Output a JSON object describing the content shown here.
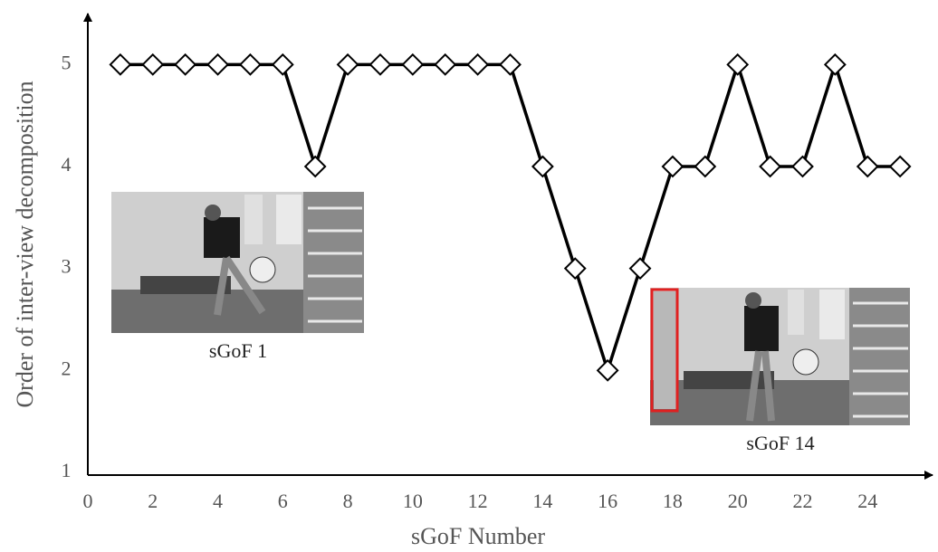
{
  "chart_data": {
    "type": "line",
    "x": [
      1,
      2,
      3,
      4,
      5,
      6,
      7,
      8,
      9,
      10,
      11,
      12,
      13,
      14,
      15,
      16,
      17,
      18,
      19,
      20,
      21,
      22,
      23,
      24,
      25
    ],
    "values": [
      5,
      5,
      5,
      5,
      5,
      5,
      4,
      5,
      5,
      5,
      5,
      5,
      5,
      4,
      3,
      2,
      3,
      4,
      4,
      5,
      4,
      4,
      5,
      4,
      4
    ],
    "color": "#000000",
    "xlim": [
      0,
      26
    ],
    "ylim": [
      1,
      5.5
    ],
    "xticks": [
      0,
      2,
      4,
      6,
      8,
      10,
      12,
      14,
      16,
      18,
      20,
      22,
      24
    ],
    "yticks": [
      1,
      2,
      3,
      4,
      5
    ],
    "xlabel": "sGoF Number",
    "ylabel": "Order of inter-view decomposition",
    "annotations": [
      "sGoF 1",
      "sGoF 14"
    ]
  }
}
